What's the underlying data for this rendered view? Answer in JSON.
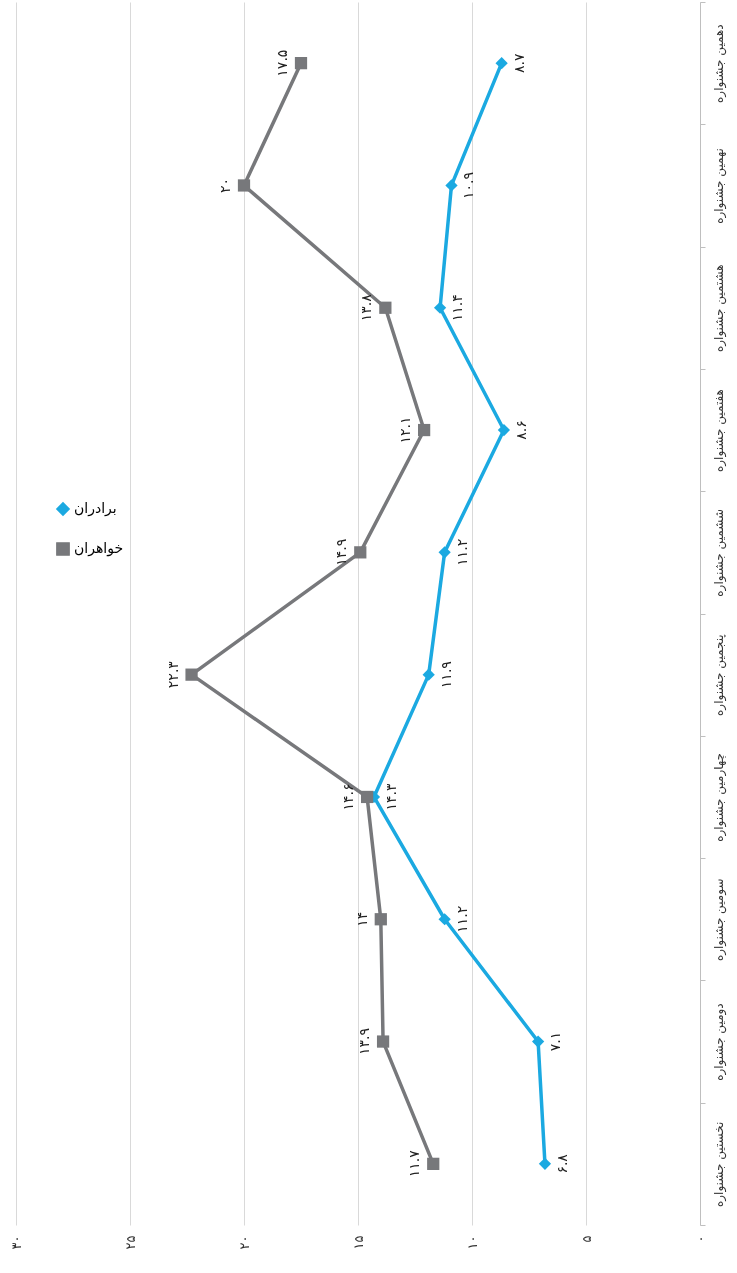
{
  "chart_data": {
    "type": "line",
    "orientation": "horizontal",
    "categories": [
      "دهمین جشنواره",
      "نهمین جشنواره",
      "هشتمین جشنواره",
      "هفتمین جشنواره",
      "ششمین جشنواره",
      "پنجمین جشنواره",
      "چهارمین جشنواره",
      "سومین جشنواره",
      "دومین جشنواره",
      "نخستین جشنواره"
    ],
    "series": [
      {
        "name": "برادران",
        "color": "#1ba9e1",
        "marker": "diamond",
        "values": [
          8.7,
          10.9,
          11.4,
          8.6,
          11.2,
          11.9,
          14.3,
          11.2,
          7.1,
          6.8
        ],
        "value_labels": [
          "۸.۷",
          "۱۰.۹",
          "۱۱.۴",
          "۸.۶",
          "۱۱.۲",
          "۱۱.۹",
          "۱۴.۳",
          "۱۱.۲",
          "۷.۱",
          "۶.۸"
        ]
      },
      {
        "name": "خواهران",
        "color": "#77787b",
        "marker": "square",
        "values": [
          17.5,
          20,
          13.8,
          12.1,
          14.9,
          22.3,
          14.6,
          14,
          13.9,
          11.7
        ],
        "value_labels": [
          "۱۷.۵",
          "۲۰",
          "۱۳.۸",
          "۱۲.۱",
          "۱۴.۹",
          "۲۲.۳",
          "۱۴.۶",
          "۱۴",
          "۱۳.۹",
          "۱۱.۷"
        ]
      }
    ],
    "xlim": [
      30,
      0
    ],
    "xticks": [
      {
        "value": 30,
        "label": "۳۰"
      },
      {
        "value": 25,
        "label": "۲۵"
      },
      {
        "value": 20,
        "label": "۲۰"
      },
      {
        "value": 15,
        "label": "۱۵"
      },
      {
        "value": 10,
        "label": "۱۰"
      },
      {
        "value": 5,
        "label": "۵"
      },
      {
        "value": 0,
        "label": "۰"
      }
    ],
    "grid": "x",
    "legend": "left"
  }
}
